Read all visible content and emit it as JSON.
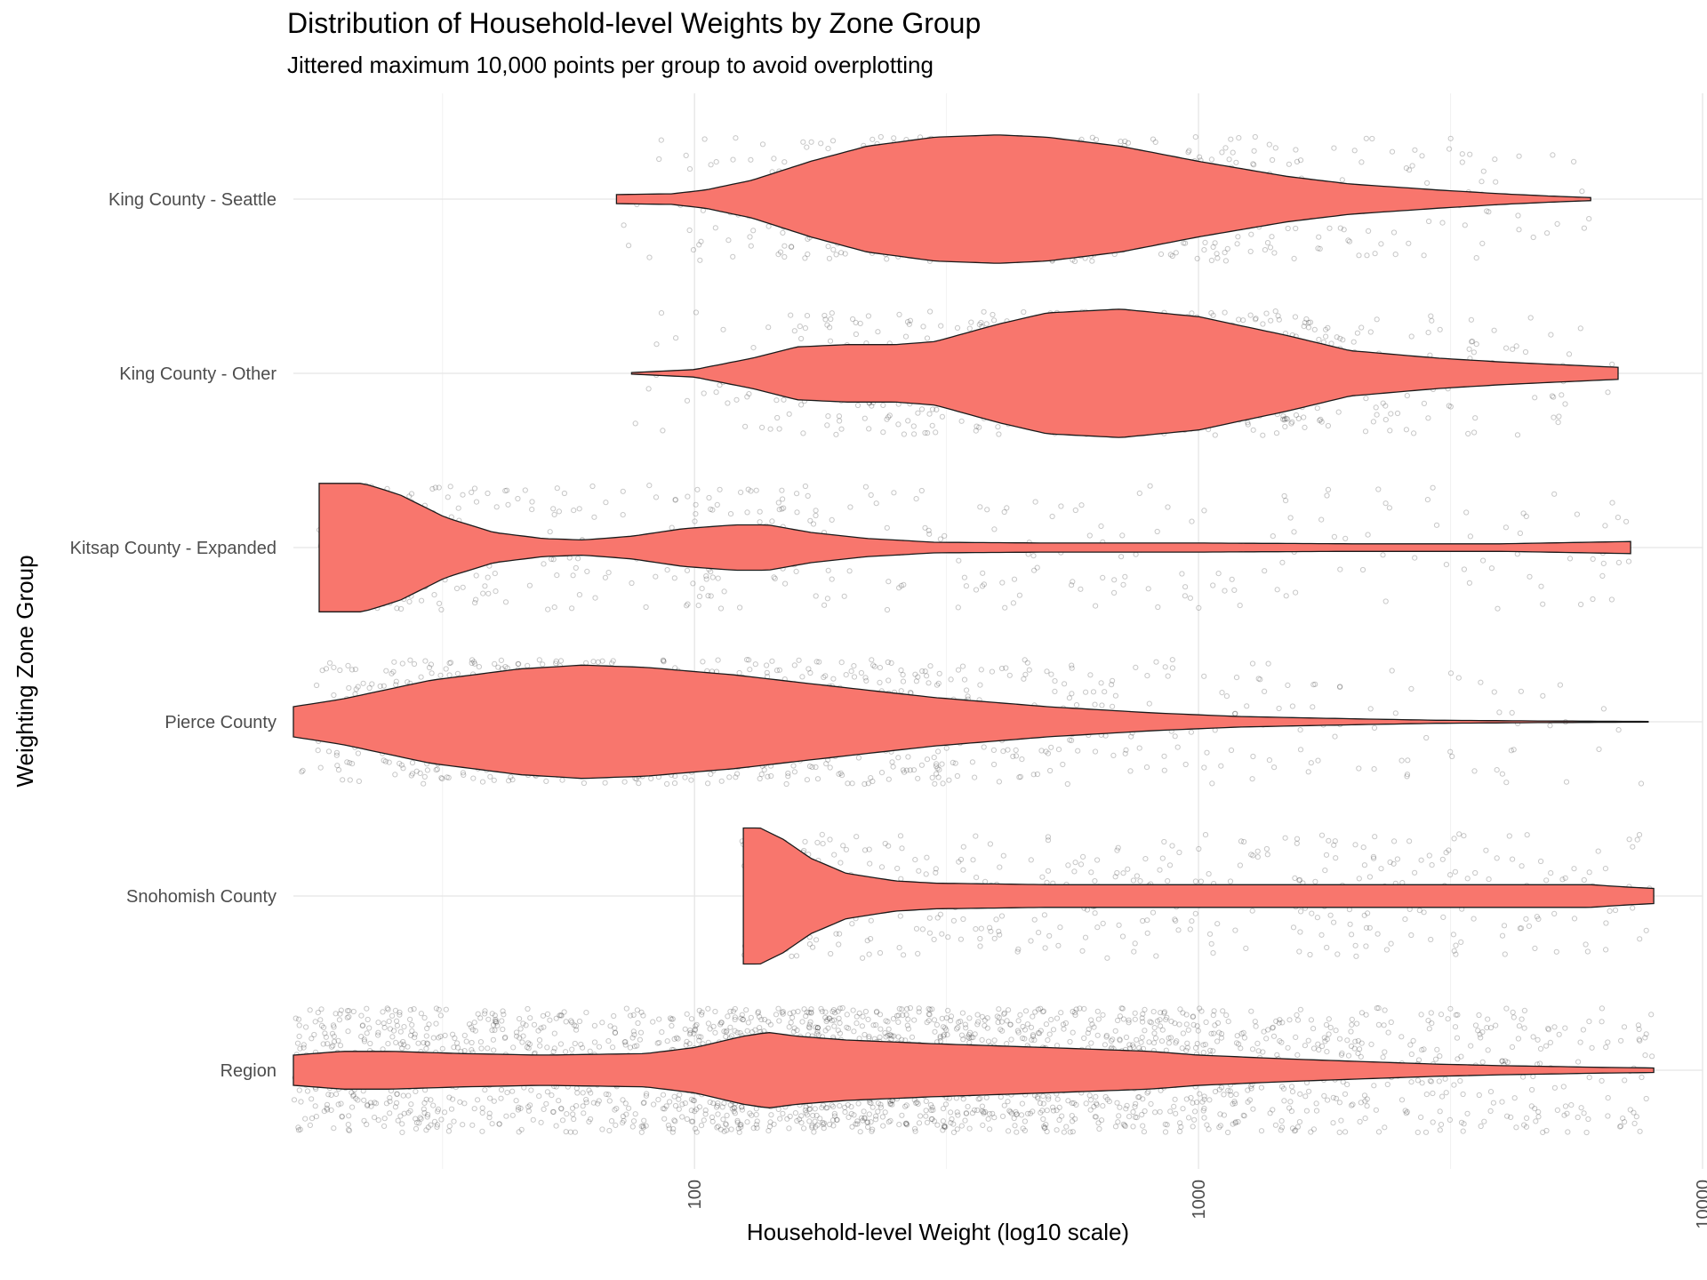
{
  "chart_data": {
    "type": "violin",
    "title": "Distribution of Household-level Weights by Zone Group",
    "subtitle": "Jittered maximum 10,000 points per group to avoid overplotting",
    "xlabel": "Household-level Weight (log10 scale)",
    "ylabel": "Weighting Zone Group",
    "x_scale": "log10",
    "xlim": [
      16,
      10000
    ],
    "x_ticks": [
      100,
      1000,
      10000
    ],
    "x_tick_labels": [
      "100",
      "1000",
      "10000"
    ],
    "grid": true,
    "fill_color": "#F8766D",
    "outline_color": "#1a1a1a",
    "point_color": "#000000",
    "categories": [
      "King County - Seattle",
      "King County - Other",
      "Kitsap County - Expanded",
      "Pierce County",
      "Snohomish County",
      "Region"
    ],
    "series": [
      {
        "category": "King County - Seattle",
        "min": 70,
        "max": 6000,
        "profile_x": [
          70,
          90,
          105,
          130,
          170,
          220,
          300,
          400,
          500,
          700,
          1000,
          1500,
          2000,
          3000,
          4000,
          5000,
          6000
        ],
        "profile_halfwidth": [
          0.06,
          0.07,
          0.12,
          0.25,
          0.5,
          0.7,
          0.82,
          0.85,
          0.82,
          0.7,
          0.5,
          0.3,
          0.2,
          0.12,
          0.07,
          0.04,
          0.02
        ],
        "points": 700
      },
      {
        "category": "King County - Other",
        "min": 75,
        "max": 6800,
        "profile_x": [
          75,
          100,
          130,
          160,
          200,
          250,
          300,
          400,
          500,
          700,
          1000,
          1500,
          2000,
          3000,
          4000,
          5000,
          6800
        ],
        "profile_halfwidth": [
          0.01,
          0.05,
          0.2,
          0.35,
          0.38,
          0.38,
          0.42,
          0.65,
          0.8,
          0.85,
          0.75,
          0.5,
          0.3,
          0.2,
          0.15,
          0.12,
          0.08
        ],
        "points": 700
      },
      {
        "category": "Kitsap County - Expanded",
        "min": 18,
        "max": 7200,
        "profile_x": [
          18,
          22,
          26,
          32,
          40,
          50,
          60,
          75,
          95,
          120,
          140,
          170,
          220,
          300,
          500,
          1000,
          2000,
          4000,
          7200
        ],
        "profile_halfwidth": [
          0.85,
          0.85,
          0.7,
          0.4,
          0.2,
          0.12,
          0.1,
          0.15,
          0.25,
          0.3,
          0.3,
          0.2,
          0.12,
          0.07,
          0.06,
          0.06,
          0.05,
          0.05,
          0.08
        ],
        "points": 500
      },
      {
        "category": "Pierce County",
        "min": 16,
        "max": 7800,
        "profile_x": [
          16,
          20,
          30,
          45,
          60,
          80,
          120,
          200,
          300,
          500,
          800,
          1200,
          2000,
          3000,
          5000,
          7800
        ],
        "profile_halfwidth": [
          0.2,
          0.3,
          0.55,
          0.7,
          0.75,
          0.72,
          0.62,
          0.45,
          0.32,
          0.2,
          0.12,
          0.07,
          0.04,
          0.02,
          0.01,
          0.005
        ],
        "points": 1200
      },
      {
        "category": "Snohomish County",
        "min": 125,
        "max": 8000,
        "profile_x": [
          125,
          135,
          150,
          170,
          200,
          250,
          300,
          500,
          1000,
          2000,
          4000,
          6000,
          7000,
          8000
        ],
        "profile_halfwidth": [
          0.9,
          0.9,
          0.75,
          0.5,
          0.3,
          0.2,
          0.17,
          0.15,
          0.15,
          0.15,
          0.15,
          0.15,
          0.12,
          0.1
        ],
        "points": 500
      },
      {
        "category": "Region",
        "min": 16,
        "max": 8000,
        "profile_x": [
          16,
          20,
          25,
          35,
          50,
          80,
          100,
          125,
          140,
          160,
          200,
          300,
          500,
          800,
          1000,
          1500,
          2000,
          3000,
          4000,
          5000,
          6000,
          8000
        ],
        "profile_halfwidth": [
          0.2,
          0.25,
          0.25,
          0.22,
          0.2,
          0.22,
          0.3,
          0.45,
          0.5,
          0.45,
          0.4,
          0.35,
          0.3,
          0.25,
          0.2,
          0.15,
          0.12,
          0.08,
          0.06,
          0.05,
          0.04,
          0.03
        ],
        "points": 2400
      }
    ]
  }
}
